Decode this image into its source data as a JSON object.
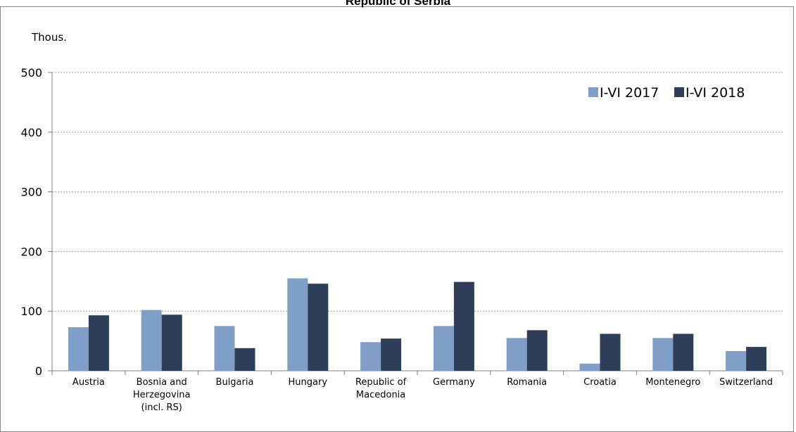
{
  "title": "Republic of Serbia",
  "colors": {
    "series_2017": "#7f9fc8",
    "series_2018": "#2e3e58",
    "grid": "#a0a0a0",
    "axis": "#7f7f7f"
  },
  "chart_data": {
    "type": "bar",
    "title": "Republic of Serbia",
    "ylabel": "Thous.",
    "xlabel": "",
    "ylim": [
      0,
      500
    ],
    "yticks": [
      0,
      100,
      200,
      300,
      400,
      500
    ],
    "grid": true,
    "legend_position": "top-right",
    "categories": [
      [
        "Austria"
      ],
      [
        "Bosnia and",
        "Herzegovina",
        "(incl. RS)"
      ],
      [
        "Bulgaria"
      ],
      [
        "Hungary"
      ],
      [
        "Republic of",
        "Macedonia"
      ],
      [
        "Germany"
      ],
      [
        "Romania"
      ],
      [
        "Croatia"
      ],
      [
        "Montenegro"
      ],
      [
        "Switzerland"
      ]
    ],
    "series": [
      {
        "name": "I-VI 2017",
        "color": "#7f9fc8",
        "values": [
          73,
          102,
          75,
          155,
          48,
          75,
          55,
          12,
          55,
          33
        ]
      },
      {
        "name": "I-VI 2018",
        "color": "#2e3e58",
        "values": [
          93,
          94,
          38,
          146,
          54,
          149,
          68,
          62,
          62,
          40
        ]
      }
    ]
  }
}
